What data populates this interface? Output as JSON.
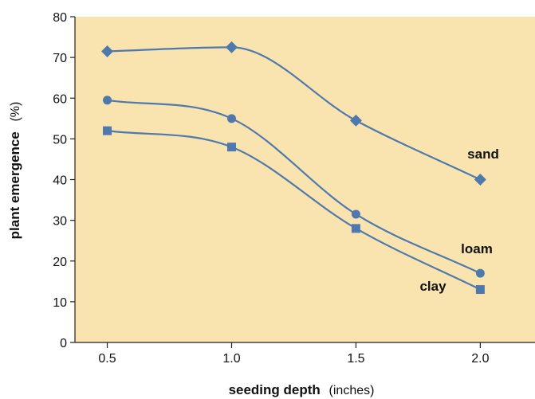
{
  "chart_data": {
    "type": "line",
    "x": [
      0.5,
      1.0,
      1.5,
      2.0
    ],
    "x_tick_labels": [
      "0.5",
      "1.0",
      "1.5",
      "2.0"
    ],
    "y_tick_labels": [
      "0",
      "10",
      "20",
      "30",
      "40",
      "50",
      "60",
      "70",
      "80"
    ],
    "xlabel": "seeding depth",
    "xlabel_unit": "(inches)",
    "ylabel": "plant emergence",
    "ylabel_unit": "(%)",
    "xlim": [
      0.37,
      2.22
    ],
    "ylim": [
      0,
      80
    ],
    "grid": false,
    "legend": "inline labels",
    "series": [
      {
        "name": "sand",
        "marker": "diamond",
        "values": [
          71.5,
          72.5,
          54.5,
          40
        ]
      },
      {
        "name": "loam",
        "marker": "circle",
        "values": [
          59.5,
          55,
          31.5,
          17
        ]
      },
      {
        "name": "clay",
        "marker": "square",
        "values": [
          52,
          48,
          28,
          13
        ]
      }
    ],
    "colors": {
      "plot_background": "#f9e4b0",
      "line": "#4f79ad",
      "marker": "#4f79ad"
    }
  }
}
